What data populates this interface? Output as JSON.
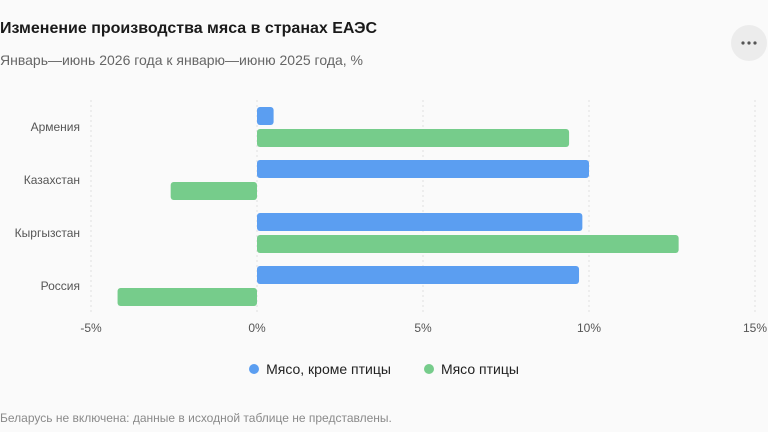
{
  "header": {
    "title": "Изменение производства мяса в странах ЕАЭС",
    "subtitle": "Январь—июнь 2026 года к январю—июню 2025 года, %"
  },
  "menu": {
    "icon": "more-horizontal-icon"
  },
  "footnote": "Беларусь не включена: данные в исходной таблице не представлены.",
  "colors": {
    "series_0": "#5b9ef1",
    "series_1": "#76cc8b",
    "grid": "#e0e0e0",
    "axis_text": "#555555"
  },
  "chart_data": {
    "type": "bar",
    "orientation": "horizontal",
    "categories": [
      "Армения",
      "Казахстан",
      "Кыргызстан",
      "Россия"
    ],
    "series": [
      {
        "name": "Мясо, кроме птицы",
        "values": [
          0.5,
          10.0,
          9.8,
          9.7
        ]
      },
      {
        "name": "Мясо птицы",
        "values": [
          9.4,
          -2.6,
          12.7,
          -4.2
        ]
      }
    ],
    "xlim": [
      -5,
      15
    ],
    "xticks": [
      -5,
      0,
      5,
      10,
      15
    ],
    "tick_labels": [
      "-5%",
      "0%",
      "5%",
      "10%",
      "15%"
    ],
    "grid": true,
    "legend_position": "bottom-center"
  }
}
